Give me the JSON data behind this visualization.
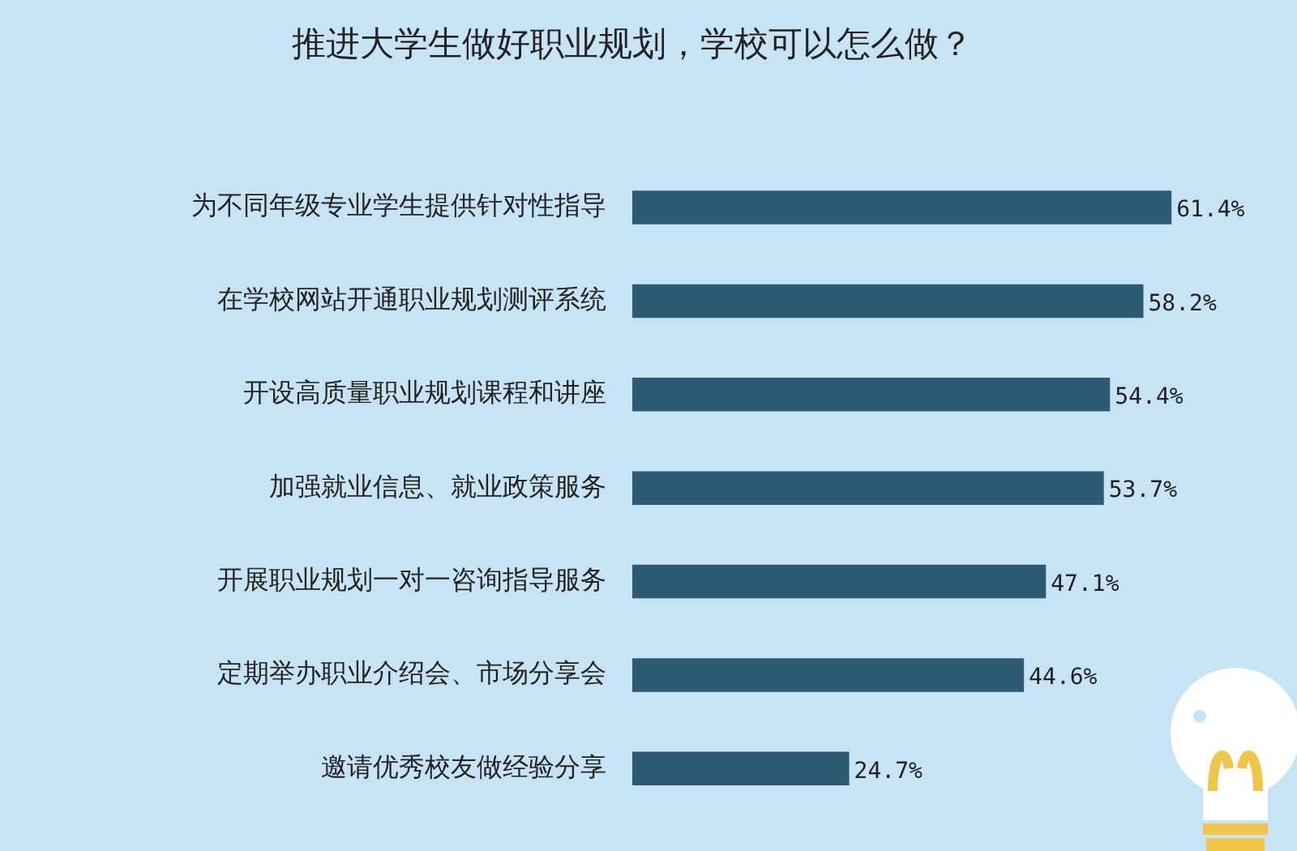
{
  "chart_data": {
    "type": "bar",
    "orientation": "horizontal",
    "title": "推进大学生做好职业规划，学校可以怎么做？",
    "categories": [
      "为不同年级专业学生提供针对性指导",
      "在学校网站开通职业规划测评系统",
      "开设高质量职业规划课程和讲座",
      "加强就业信息、就业政策服务",
      "开展职业规划一对一咨询指导服务",
      "定期举办职业介绍会、市场分享会",
      "邀请优秀校友做经验分享"
    ],
    "values": [
      61.4,
      58.2,
      54.4,
      53.7,
      47.1,
      44.6,
      24.7
    ],
    "value_labels": [
      "61.4%",
      "58.2%",
      "54.4%",
      "53.7%",
      "47.1%",
      "44.6%",
      "24.7%"
    ],
    "color": "#2e5b74",
    "xlim": [
      0,
      72
    ],
    "tick_labels": "y",
    "grid": false,
    "legend": false
  }
}
